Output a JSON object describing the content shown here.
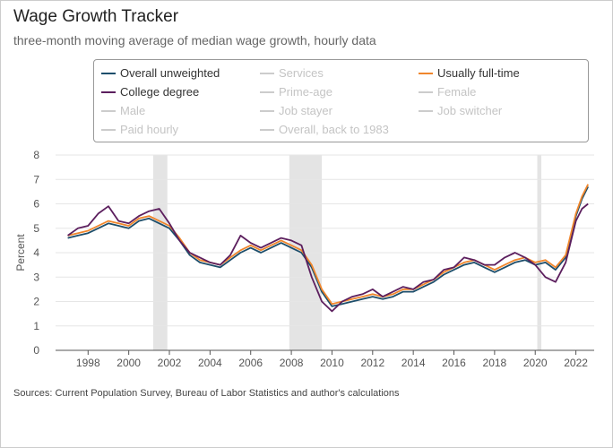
{
  "title": "Wage Growth Tracker",
  "subtitle": "three-month moving average of median wage growth, hourly data",
  "source": "Sources: Current Population Survey, Bureau of Labor Statistics and author's calculations",
  "legend": [
    {
      "label": "Overall unweighted",
      "color": "#1d4e6b",
      "active": true
    },
    {
      "label": "Services",
      "color": "#cccccc",
      "active": false
    },
    {
      "label": "Usually full-time",
      "color": "#f0862c",
      "active": true
    },
    {
      "label": "College degree",
      "color": "#5c1f5e",
      "active": true
    },
    {
      "label": "Prime-age",
      "color": "#cccccc",
      "active": false
    },
    {
      "label": "Female",
      "color": "#cccccc",
      "active": false
    },
    {
      "label": "Male",
      "color": "#cccccc",
      "active": false
    },
    {
      "label": "Job stayer",
      "color": "#cccccc",
      "active": false
    },
    {
      "label": "Job switcher",
      "color": "#cccccc",
      "active": false
    },
    {
      "label": "Paid hourly",
      "color": "#cccccc",
      "active": false
    },
    {
      "label": "Overall, back to 1983",
      "color": "#cccccc",
      "active": false
    }
  ],
  "chart_data": {
    "type": "line",
    "ylabel": "Percent",
    "xlabel": "",
    "xlim": [
      1996.4,
      2022.9
    ],
    "ylim": [
      0,
      8
    ],
    "x_ticks": [
      1998,
      2000,
      2002,
      2004,
      2006,
      2008,
      2010,
      2012,
      2014,
      2016,
      2018,
      2020,
      2022
    ],
    "y_ticks": [
      0,
      1,
      2,
      3,
      4,
      5,
      6,
      7,
      8
    ],
    "recessions": [
      [
        2001.2,
        2001.9
      ],
      [
        2007.9,
        2009.5
      ],
      [
        2020.1,
        2020.3
      ]
    ],
    "series": [
      {
        "name": "Overall unweighted",
        "color": "#1d4e6b",
        "x": [
          1997.0,
          1997.5,
          1998.0,
          1998.5,
          1999.0,
          1999.5,
          2000.0,
          2000.5,
          2001.0,
          2001.5,
          2002.0,
          2002.5,
          2003.0,
          2003.5,
          2004.0,
          2004.5,
          2005.0,
          2005.5,
          2006.0,
          2006.5,
          2007.0,
          2007.5,
          2008.0,
          2008.5,
          2009.0,
          2009.5,
          2010.0,
          2010.5,
          2011.0,
          2011.5,
          2012.0,
          2012.5,
          2013.0,
          2013.5,
          2014.0,
          2014.5,
          2015.0,
          2015.5,
          2016.0,
          2016.5,
          2017.0,
          2017.5,
          2018.0,
          2018.5,
          2019.0,
          2019.5,
          2020.0,
          2020.5,
          2021.0,
          2021.5,
          2022.0,
          2022.3,
          2022.6
        ],
        "values": [
          4.6,
          4.7,
          4.8,
          5.0,
          5.2,
          5.1,
          5.0,
          5.3,
          5.4,
          5.2,
          5.0,
          4.5,
          3.9,
          3.6,
          3.5,
          3.4,
          3.7,
          4.0,
          4.2,
          4.0,
          4.2,
          4.4,
          4.2,
          4.0,
          3.4,
          2.4,
          1.8,
          1.9,
          2.0,
          2.1,
          2.2,
          2.1,
          2.2,
          2.4,
          2.4,
          2.6,
          2.8,
          3.1,
          3.3,
          3.5,
          3.6,
          3.4,
          3.2,
          3.4,
          3.6,
          3.7,
          3.5,
          3.6,
          3.3,
          3.8,
          5.5,
          6.2,
          6.7
        ]
      },
      {
        "name": "Usually full-time",
        "color": "#f0862c",
        "x": [
          1997.0,
          1997.5,
          1998.0,
          1998.5,
          1999.0,
          1999.5,
          2000.0,
          2000.5,
          2001.0,
          2001.5,
          2002.0,
          2002.5,
          2003.0,
          2003.5,
          2004.0,
          2004.5,
          2005.0,
          2005.5,
          2006.0,
          2006.5,
          2007.0,
          2007.5,
          2008.0,
          2008.5,
          2009.0,
          2009.5,
          2010.0,
          2010.5,
          2011.0,
          2011.5,
          2012.0,
          2012.5,
          2013.0,
          2013.5,
          2014.0,
          2014.5,
          2015.0,
          2015.5,
          2016.0,
          2016.5,
          2017.0,
          2017.5,
          2018.0,
          2018.5,
          2019.0,
          2019.5,
          2020.0,
          2020.5,
          2021.0,
          2021.5,
          2022.0,
          2022.3,
          2022.6
        ],
        "values": [
          4.7,
          4.8,
          4.9,
          5.1,
          5.3,
          5.2,
          5.1,
          5.4,
          5.5,
          5.3,
          5.1,
          4.6,
          4.0,
          3.7,
          3.6,
          3.5,
          3.8,
          4.1,
          4.3,
          4.1,
          4.3,
          4.5,
          4.3,
          4.1,
          3.5,
          2.5,
          1.9,
          2.0,
          2.1,
          2.2,
          2.3,
          2.2,
          2.3,
          2.5,
          2.5,
          2.7,
          2.9,
          3.2,
          3.4,
          3.6,
          3.7,
          3.5,
          3.3,
          3.5,
          3.7,
          3.8,
          3.6,
          3.7,
          3.4,
          3.9,
          5.6,
          6.3,
          6.8
        ]
      },
      {
        "name": "College degree",
        "color": "#5c1f5e",
        "x": [
          1997.0,
          1997.5,
          1998.0,
          1998.5,
          1999.0,
          1999.5,
          2000.0,
          2000.5,
          2001.0,
          2001.5,
          2002.0,
          2002.5,
          2003.0,
          2003.5,
          2004.0,
          2004.5,
          2005.0,
          2005.5,
          2006.0,
          2006.5,
          2007.0,
          2007.5,
          2008.0,
          2008.5,
          2009.0,
          2009.5,
          2010.0,
          2010.5,
          2011.0,
          2011.5,
          2012.0,
          2012.5,
          2013.0,
          2013.5,
          2014.0,
          2014.5,
          2015.0,
          2015.5,
          2016.0,
          2016.5,
          2017.0,
          2017.5,
          2018.0,
          2018.5,
          2019.0,
          2019.5,
          2020.0,
          2020.5,
          2021.0,
          2021.5,
          2022.0,
          2022.3,
          2022.6
        ],
        "values": [
          4.7,
          5.0,
          5.1,
          5.6,
          5.9,
          5.3,
          5.2,
          5.5,
          5.7,
          5.8,
          5.2,
          4.5,
          4.0,
          3.8,
          3.6,
          3.5,
          3.9,
          4.7,
          4.4,
          4.2,
          4.4,
          4.6,
          4.5,
          4.3,
          3.0,
          2.0,
          1.6,
          2.0,
          2.2,
          2.3,
          2.5,
          2.2,
          2.4,
          2.6,
          2.5,
          2.8,
          2.9,
          3.3,
          3.4,
          3.8,
          3.7,
          3.5,
          3.5,
          3.8,
          4.0,
          3.8,
          3.5,
          3.0,
          2.8,
          3.6,
          5.3,
          5.8,
          6.0
        ]
      }
    ]
  }
}
